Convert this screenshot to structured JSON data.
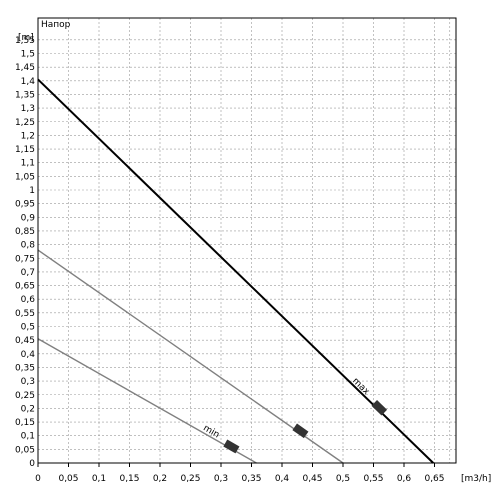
{
  "chart_data": {
    "type": "line",
    "title": "Напор",
    "ylabel": "[m]",
    "xlabel": "[m3/h]",
    "xlim": [
      0,
      0.7
    ],
    "ylim": [
      0,
      1.6
    ],
    "grid": true,
    "x_ticks": [
      "0",
      "0,05",
      "0,1",
      "0,15",
      "0,2",
      "0,25",
      "0,3",
      "0,35",
      "0,4",
      "0,45",
      "0,5",
      "0,55",
      "0,6",
      "0,65"
    ],
    "y_ticks": [
      "0,05",
      "0,1",
      "0,15",
      "0,2",
      "0,25",
      "0,3",
      "0,35",
      "0,4",
      "0,45",
      "0,5",
      "0,55",
      "0,6",
      "0,65",
      "0,7",
      "0,75",
      "0,8",
      "0,85",
      "0,9",
      "0,95",
      "1",
      "1,05",
      "1,1",
      "1,15",
      "1,2",
      "1,25",
      "1,3",
      "1,35",
      "1,4",
      "1,45",
      "1,5",
      "1,55"
    ],
    "series": [
      {
        "name": "max",
        "color": "#000000",
        "x": [
          0,
          0.648
        ],
        "y": [
          1.405,
          0
        ]
      },
      {
        "name": "",
        "color": "#808080",
        "x": [
          0,
          0.5
        ],
        "y": [
          0.78,
          0
        ]
      },
      {
        "name": "min",
        "color": "#808080",
        "x": [
          0,
          0.358
        ],
        "y": [
          0.455,
          0
        ]
      }
    ],
    "annotations": [
      {
        "text": "max",
        "series": 0
      },
      {
        "text": "min",
        "series": 2
      }
    ]
  }
}
